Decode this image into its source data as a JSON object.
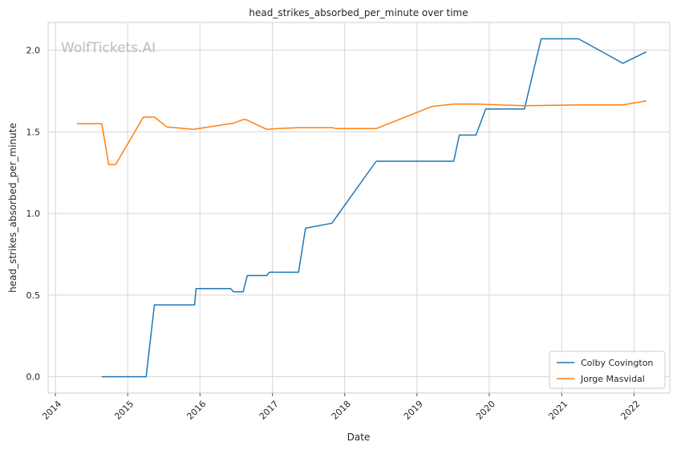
{
  "watermark": "WolfTickets.AI",
  "chart_data": {
    "type": "line",
    "title": "head_strikes_absorbed_per_minute over time",
    "xlabel": "Date",
    "ylabel": "head_strikes_absorbed_per_minute",
    "x_ticks": [
      "2014",
      "2015",
      "2016",
      "2017",
      "2018",
      "2019",
      "2020",
      "2021",
      "2022"
    ],
    "y_ticks": [
      "0.0",
      "0.5",
      "1.0",
      "1.5",
      "2.0"
    ],
    "xlim": [
      "2013-11-25",
      "2022-07-01"
    ],
    "ylim": [
      -0.1,
      2.17
    ],
    "grid": true,
    "legend_position": "bottom-right",
    "series": [
      {
        "name": "Colby Covington",
        "color": "#1f77b4",
        "points": [
          [
            "2014-08-23",
            0.0
          ],
          [
            "2015-04-04",
            0.0
          ],
          [
            "2015-05-16",
            0.44
          ],
          [
            "2015-12-05",
            0.44
          ],
          [
            "2015-12-12",
            0.54
          ],
          [
            "2016-06-04",
            0.54
          ],
          [
            "2016-06-18",
            0.52
          ],
          [
            "2016-08-06",
            0.52
          ],
          [
            "2016-08-27",
            0.62
          ],
          [
            "2016-12-03",
            0.62
          ],
          [
            "2016-12-17",
            0.64
          ],
          [
            "2017-05-13",
            0.64
          ],
          [
            "2017-06-17",
            0.91
          ],
          [
            "2017-10-28",
            0.94
          ],
          [
            "2018-06-09",
            1.32
          ],
          [
            "2019-07-06",
            1.32
          ],
          [
            "2019-08-03",
            1.48
          ],
          [
            "2019-10-26",
            1.48
          ],
          [
            "2019-12-14",
            1.64
          ],
          [
            "2020-06-27",
            1.64
          ],
          [
            "2020-09-19",
            2.07
          ],
          [
            "2021-03-27",
            2.07
          ],
          [
            "2021-11-06",
            1.92
          ],
          [
            "2022-03-05",
            1.99
          ]
        ]
      },
      {
        "name": "Jorge Masvidal",
        "color": "#ff7f0e",
        "points": [
          [
            "2014-04-19",
            1.55
          ],
          [
            "2014-08-23",
            1.55
          ],
          [
            "2014-09-27",
            1.3
          ],
          [
            "2014-11-01",
            1.3
          ],
          [
            "2015-03-21",
            1.59
          ],
          [
            "2015-05-16",
            1.59
          ],
          [
            "2015-07-18",
            1.53
          ],
          [
            "2015-11-28",
            1.515
          ],
          [
            "2016-05-29",
            1.55
          ],
          [
            "2016-06-11",
            1.55
          ],
          [
            "2016-08-06",
            1.575
          ],
          [
            "2016-08-20",
            1.575
          ],
          [
            "2016-12-03",
            1.515
          ],
          [
            "2017-01-28",
            1.52
          ],
          [
            "2017-05-06",
            1.525
          ],
          [
            "2017-11-04",
            1.525
          ],
          [
            "2017-11-18",
            1.52
          ],
          [
            "2018-06-09",
            1.52
          ],
          [
            "2019-03-16",
            1.655
          ],
          [
            "2019-07-06",
            1.67
          ],
          [
            "2019-11-02",
            1.67
          ],
          [
            "2020-06-27",
            1.66
          ],
          [
            "2021-04-24",
            1.665
          ],
          [
            "2021-11-06",
            1.665
          ],
          [
            "2022-03-05",
            1.69
          ]
        ]
      }
    ]
  }
}
